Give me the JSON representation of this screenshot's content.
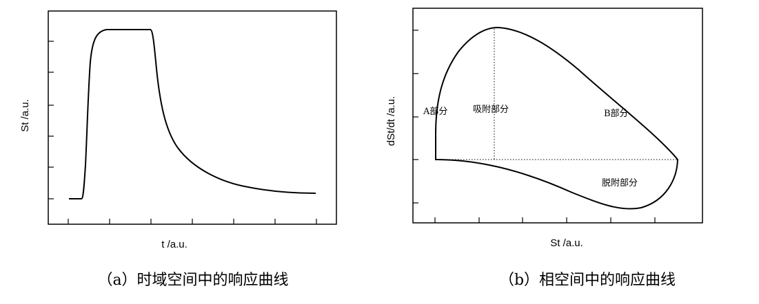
{
  "panel_a": {
    "xlabel": "t /a.u.",
    "ylabel": "St /a.u.",
    "caption": "（a）时域空间中的响应曲线"
  },
  "panel_b": {
    "xlabel": "St /a.u.",
    "ylabel": "dSt/dt /a.u.",
    "caption": "（b）相空间中的响应曲线",
    "annotations": {
      "a_part": "A部分",
      "adsorption_part": "吸附部分",
      "b_part": "B部分",
      "desorption_part": "脱附部分"
    }
  }
}
